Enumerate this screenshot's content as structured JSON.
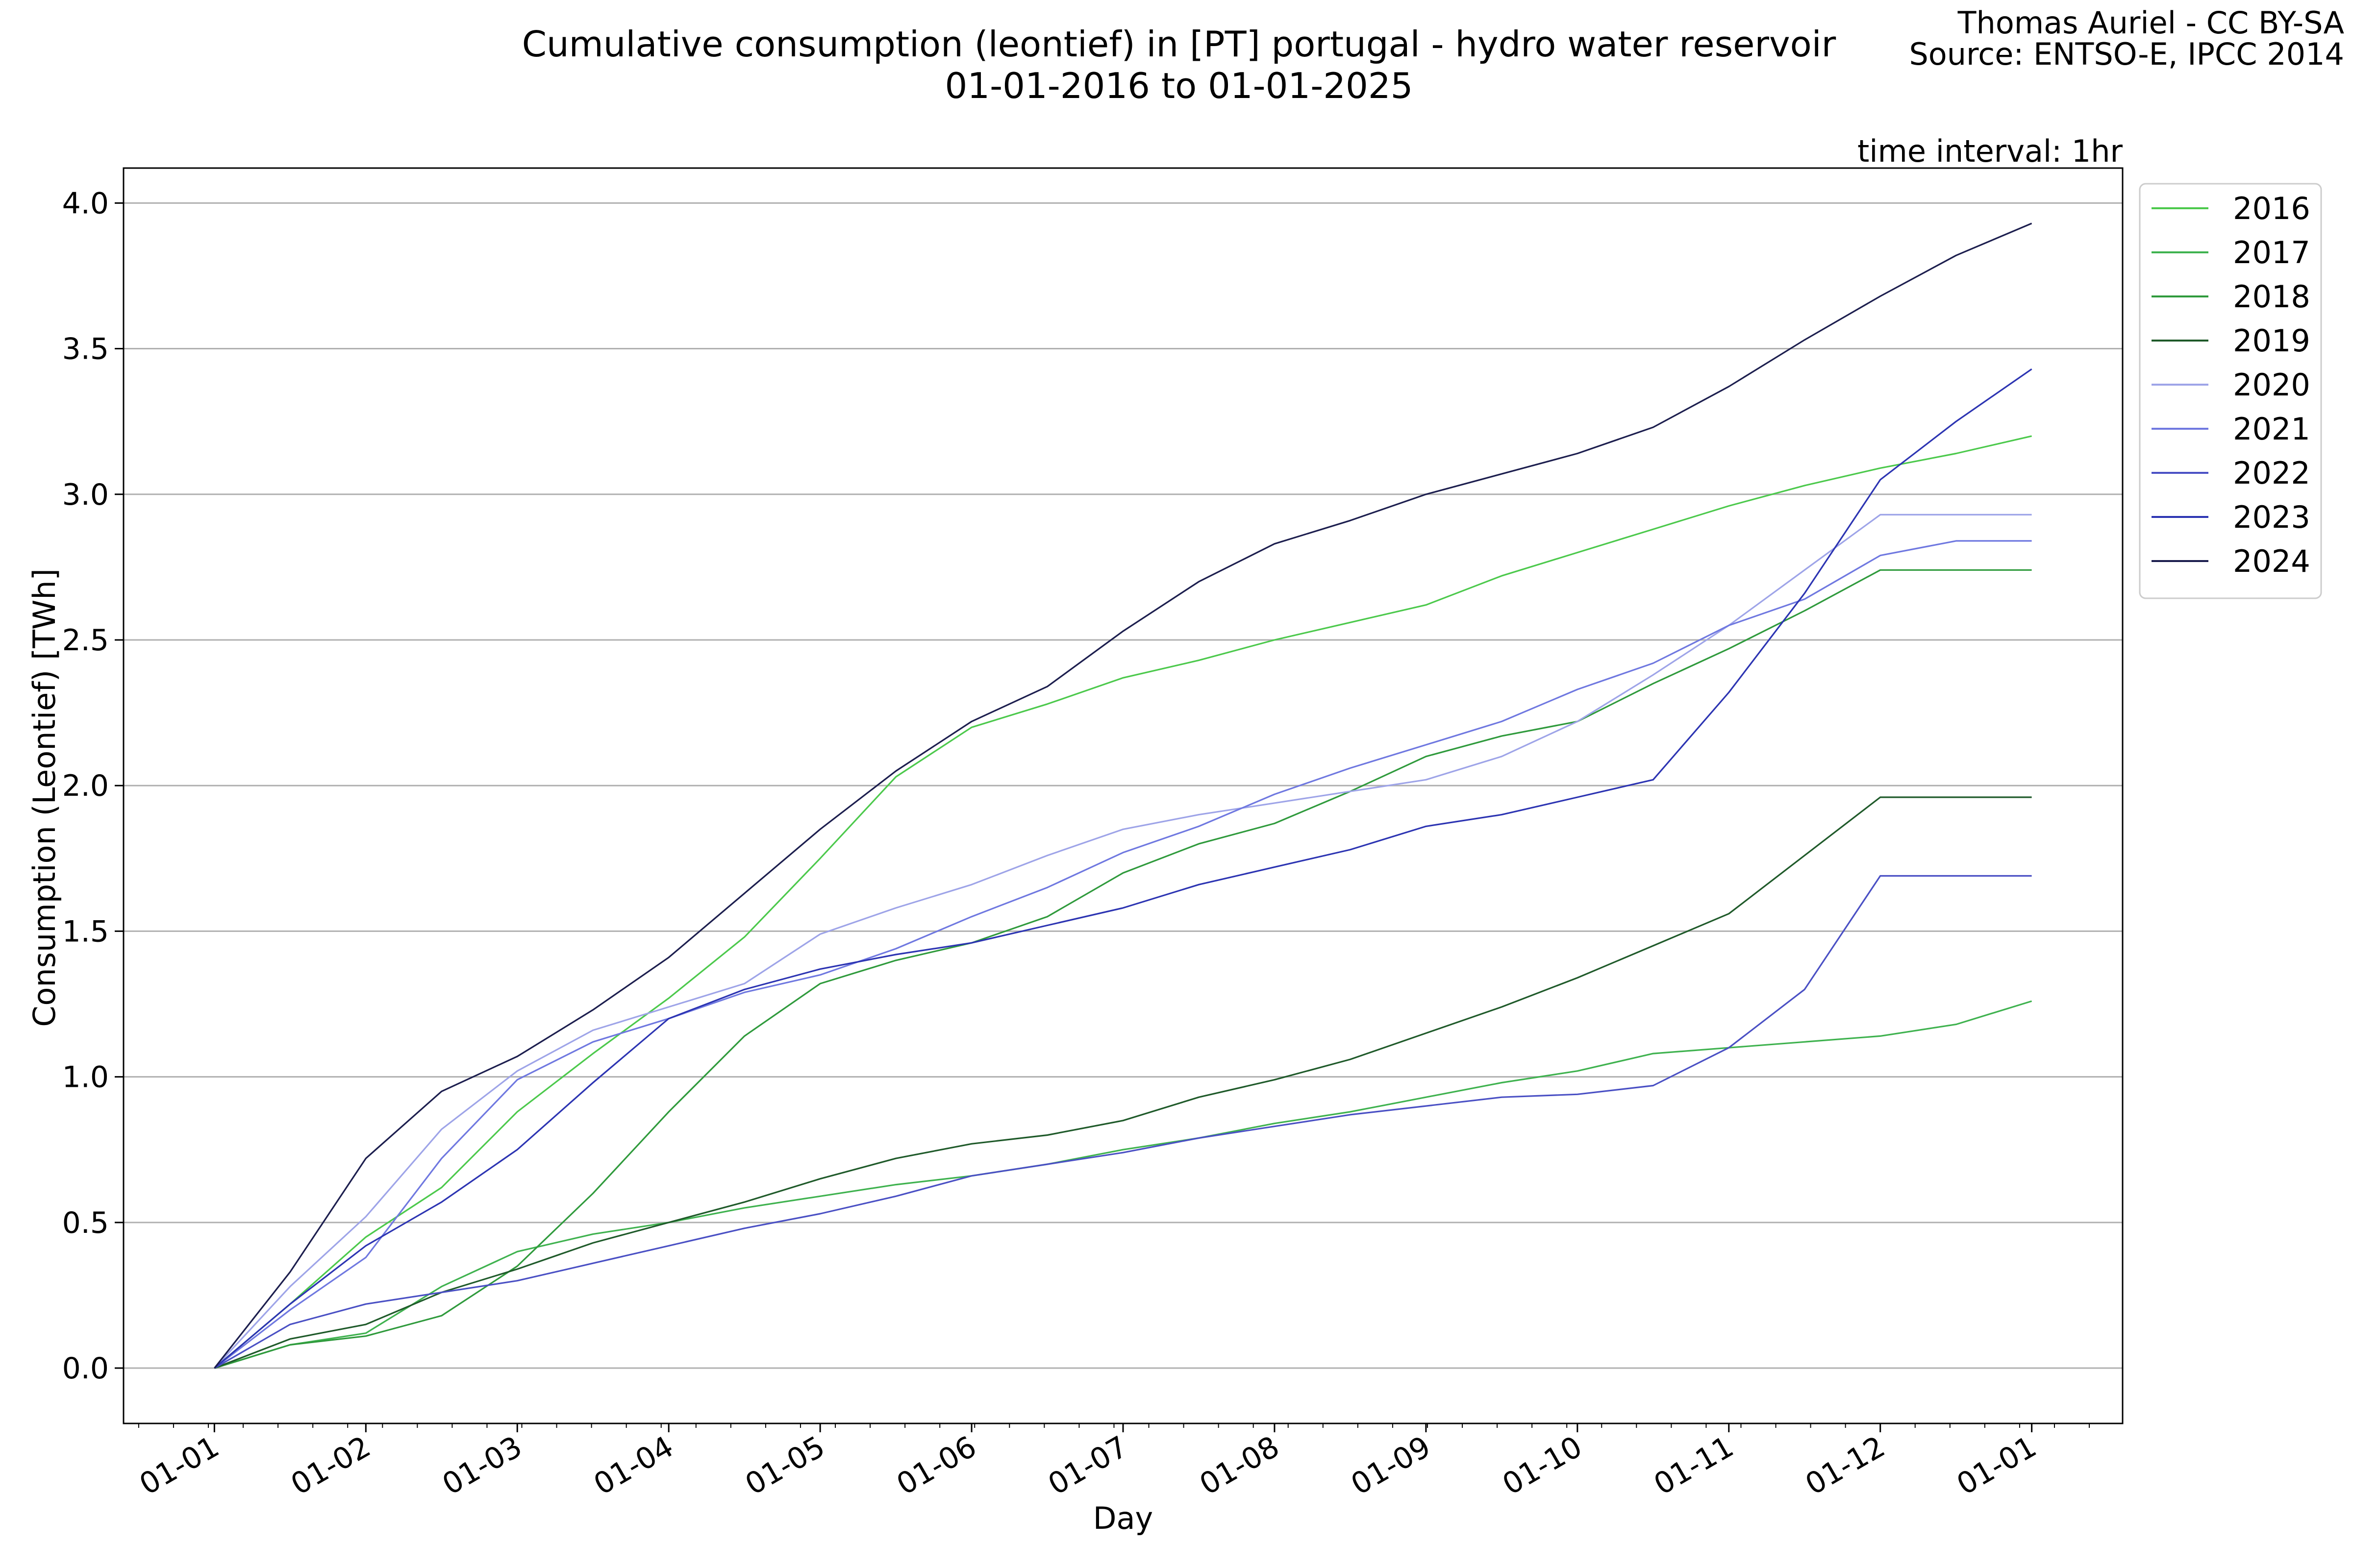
{
  "header": {
    "title_line1": "Cumulative consumption (leontief) in [PT] portugal - hydro water reservoir",
    "title_line2": "01-01-2016 to 01-01-2025",
    "credit_line1": "Thomas Auriel - CC BY-SA",
    "credit_line2": "Source: ENTSO-E, IPCC 2014",
    "interval_note": "time interval: 1hr"
  },
  "chart_data": {
    "type": "line",
    "xlabel": "Day",
    "ylabel": "Consumption (Leontief) [TWh]",
    "ylim": [
      -0.19,
      4.12
    ],
    "xlim": [
      -0.6,
      12.6
    ],
    "grid": "horizontal",
    "legend_position": "outside-top-right",
    "x_tick_labels": [
      "01-01",
      "01-02",
      "01-03",
      "01-04",
      "01-05",
      "01-06",
      "01-07",
      "01-08",
      "01-09",
      "01-10",
      "01-11",
      "01-12",
      "01-01"
    ],
    "y_ticks": [
      0.0,
      0.5,
      1.0,
      1.5,
      2.0,
      2.5,
      3.0,
      3.5,
      4.0
    ],
    "y_tick_labels": [
      "0.0",
      "0.5",
      "1.0",
      "1.5",
      "2.0",
      "2.5",
      "3.0",
      "3.5",
      "4.0"
    ],
    "x": [
      0,
      0.5,
      1,
      1.5,
      2,
      2.5,
      3,
      3.5,
      4,
      4.5,
      5,
      5.5,
      6,
      6.5,
      7,
      7.5,
      8,
      8.5,
      9,
      9.5,
      10,
      10.5,
      11,
      11.5,
      12
    ],
    "series": [
      {
        "name": "2016",
        "color": "#4cc94c",
        "values": [
          0,
          0.22,
          0.45,
          0.62,
          0.88,
          1.08,
          1.27,
          1.48,
          1.75,
          2.03,
          2.2,
          2.28,
          2.37,
          2.43,
          2.5,
          2.56,
          2.62,
          2.72,
          2.8,
          2.88,
          2.96,
          3.03,
          3.09,
          3.14,
          3.2
        ]
      },
      {
        "name": "2017",
        "color": "#3fb24f",
        "values": [
          0,
          0.08,
          0.12,
          0.28,
          0.4,
          0.46,
          0.5,
          0.55,
          0.59,
          0.63,
          0.66,
          0.7,
          0.75,
          0.79,
          0.84,
          0.88,
          0.93,
          0.98,
          1.02,
          1.08,
          1.1,
          1.12,
          1.14,
          1.18,
          1.26
        ]
      },
      {
        "name": "2018",
        "color": "#2f9a3c",
        "values": [
          0,
          0.08,
          0.11,
          0.18,
          0.35,
          0.6,
          0.88,
          1.14,
          1.32,
          1.4,
          1.46,
          1.55,
          1.7,
          1.8,
          1.87,
          1.98,
          2.1,
          2.17,
          2.22,
          2.35,
          2.47,
          2.6,
          2.74,
          2.74,
          2.74
        ]
      },
      {
        "name": "2019",
        "color": "#1f5a2a",
        "values": [
          0,
          0.1,
          0.15,
          0.26,
          0.34,
          0.43,
          0.5,
          0.57,
          0.65,
          0.72,
          0.77,
          0.8,
          0.85,
          0.93,
          0.99,
          1.06,
          1.15,
          1.24,
          1.34,
          1.45,
          1.56,
          1.76,
          1.96,
          1.96,
          1.96
        ]
      },
      {
        "name": "2020",
        "color": "#9ea4e8",
        "values": [
          0,
          0.28,
          0.52,
          0.82,
          1.02,
          1.16,
          1.24,
          1.32,
          1.49,
          1.58,
          1.66,
          1.76,
          1.85,
          1.9,
          1.94,
          1.98,
          2.02,
          2.1,
          2.22,
          2.38,
          2.55,
          2.74,
          2.93,
          2.93,
          2.93
        ]
      },
      {
        "name": "2021",
        "color": "#6f78e0",
        "values": [
          0,
          0.2,
          0.38,
          0.72,
          0.99,
          1.12,
          1.2,
          1.29,
          1.35,
          1.44,
          1.55,
          1.65,
          1.77,
          1.86,
          1.97,
          2.06,
          2.14,
          2.22,
          2.33,
          2.42,
          2.55,
          2.64,
          2.79,
          2.84,
          2.84
        ]
      },
      {
        "name": "2022",
        "color": "#4a50c4",
        "values": [
          0,
          0.15,
          0.22,
          0.26,
          0.3,
          0.36,
          0.42,
          0.48,
          0.53,
          0.59,
          0.66,
          0.7,
          0.74,
          0.79,
          0.83,
          0.87,
          0.9,
          0.93,
          0.94,
          0.97,
          1.1,
          1.3,
          1.69,
          1.69,
          1.69
        ]
      },
      {
        "name": "2023",
        "color": "#2c34b2",
        "values": [
          0,
          0.22,
          0.42,
          0.57,
          0.75,
          0.98,
          1.2,
          1.3,
          1.37,
          1.42,
          1.46,
          1.52,
          1.58,
          1.66,
          1.72,
          1.78,
          1.86,
          1.9,
          1.96,
          2.02,
          2.32,
          2.66,
          3.05,
          3.25,
          3.43
        ]
      },
      {
        "name": "2024",
        "color": "#1c1e4e",
        "values": [
          0,
          0.33,
          0.72,
          0.95,
          1.07,
          1.23,
          1.41,
          1.63,
          1.85,
          2.05,
          2.22,
          2.34,
          2.53,
          2.7,
          2.83,
          2.91,
          3.0,
          3.07,
          3.14,
          3.23,
          3.37,
          3.53,
          3.68,
          3.82,
          3.93
        ]
      }
    ]
  }
}
